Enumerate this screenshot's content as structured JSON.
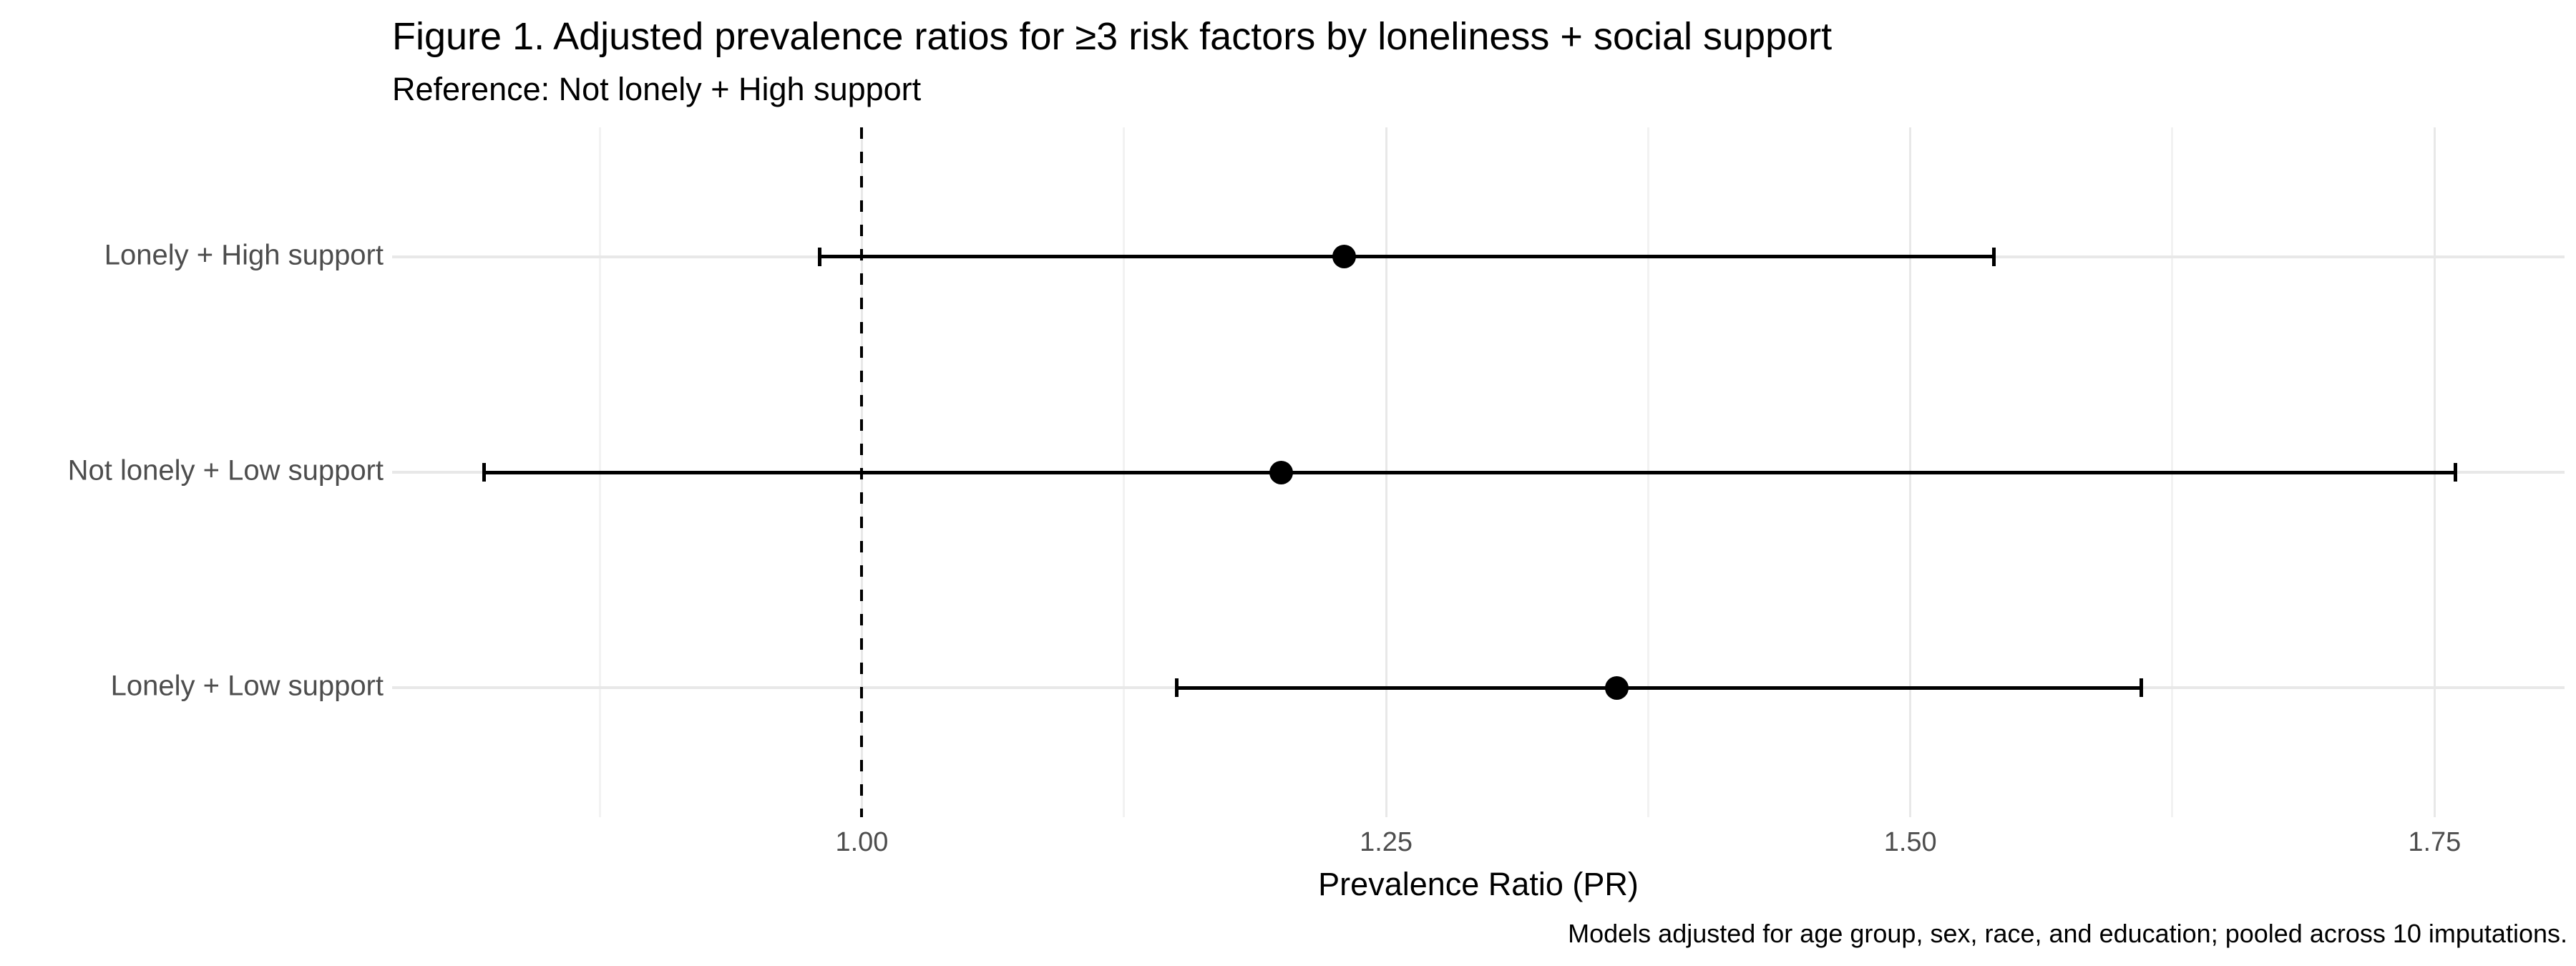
{
  "page": {
    "background": "#FFFFFF"
  },
  "chart_data": {
    "type": "scatter",
    "subtype": "forest_plot_horizontal_ci",
    "title": "Figure 1. Adjusted prevalence ratios for ≥3 risk factors by loneliness + social support",
    "subtitle": "Reference: Not lonely + High support",
    "caption": "Models adjusted for age group, sex, race, and education; pooled across 10 imputations.",
    "xlabel": "Prevalence Ratio (PR)",
    "ylabel": "",
    "legend": "none",
    "categories": [
      "Lonely + High support",
      "Not lonely + Low support",
      "Lonely + Low support"
    ],
    "points": [
      {
        "category": "Lonely + High support",
        "pr": 1.23,
        "ci_low": 0.98,
        "ci_high": 1.54
      },
      {
        "category": "Not lonely + Low support",
        "pr": 1.2,
        "ci_low": 0.82,
        "ci_high": 1.76
      },
      {
        "category": "Lonely + Low support",
        "pr": 1.36,
        "ci_low": 1.15,
        "ci_high": 1.61
      }
    ],
    "x_ticks": [
      1.0,
      1.25,
      1.5,
      1.75
    ],
    "x_tick_labels": [
      "1.00",
      "1.25",
      "1.50",
      "1.75"
    ],
    "x_minor_gridlines": [
      0.875,
      1.125,
      1.375,
      1.625
    ],
    "xlim": [
      0.776,
      1.812
    ],
    "reference_line": {
      "x": 1.0,
      "style": "dashed",
      "color": "#000000"
    },
    "grid": "vertical major+minor, horizontal per category",
    "colors": {
      "point": "#000000",
      "error_bar": "#000000",
      "axis_text": "#4D4D4D",
      "title_text": "#000000",
      "grid_major": "#E8E8E8",
      "grid_minor": "#F2F2F2",
      "background": "#FFFFFF"
    }
  }
}
